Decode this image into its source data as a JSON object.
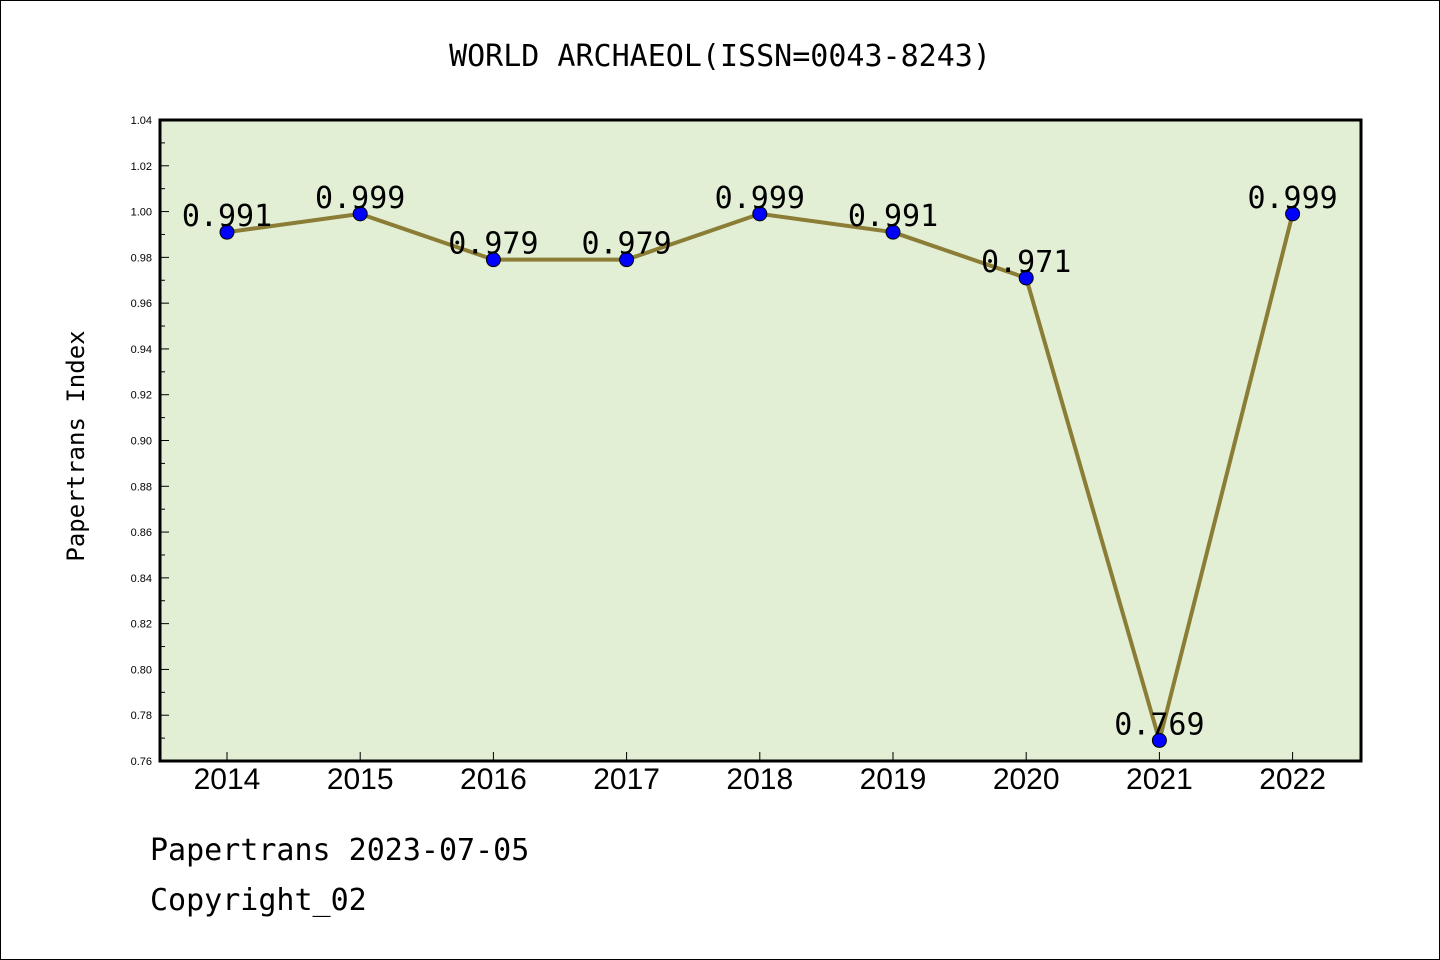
{
  "chart_data": {
    "type": "line",
    "title": "WORLD ARCHAEOL(ISSN=0043-8243)",
    "xlabel": "",
    "ylabel": "Papertrans Index",
    "categories": [
      "2014",
      "2015",
      "2016",
      "2017",
      "2018",
      "2019",
      "2020",
      "2021",
      "2022"
    ],
    "series": [
      {
        "values": [
          0.991,
          0.999,
          0.979,
          0.979,
          0.999,
          0.991,
          0.971,
          0.769,
          0.999
        ],
        "labels": [
          "0.991",
          "0.999",
          "0.979",
          "0.979",
          "0.999",
          "0.991",
          "0.971",
          "0.769",
          "0.999"
        ]
      }
    ],
    "ylim": [
      0.76,
      1.04
    ],
    "yticks": [
      "0.76",
      "0.78",
      "0.80",
      "0.82",
      "0.84",
      "0.86",
      "0.88",
      "0.90",
      "0.92",
      "0.94",
      "0.96",
      "0.98",
      "1.00",
      "1.02",
      "1.04"
    ],
    "grid": false,
    "colors": {
      "plot_background": "#e2efd5",
      "line": "#8b7d35",
      "marker": "#0000ff"
    }
  },
  "footer": {
    "line1": "Papertrans 2023-07-05",
    "line2": "Copyright_02"
  }
}
